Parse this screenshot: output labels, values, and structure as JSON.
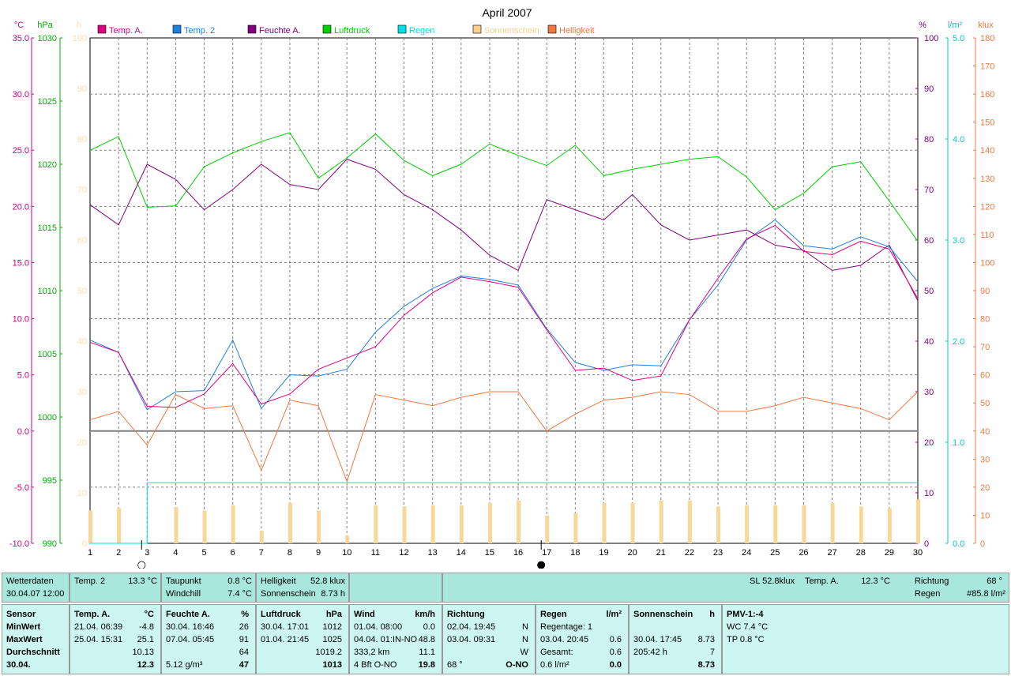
{
  "chart_data": {
    "type": "line",
    "title": "April 2007",
    "x": [
      1,
      2,
      3,
      4,
      5,
      6,
      7,
      8,
      9,
      10,
      11,
      12,
      13,
      14,
      15,
      16,
      17,
      18,
      19,
      20,
      21,
      22,
      23,
      24,
      25,
      26,
      27,
      28,
      29,
      30
    ],
    "axes": {
      "temp": {
        "unit": "°C",
        "range": [
          -10,
          35
        ],
        "ticks": [
          "35.0",
          "30.0",
          "25.0",
          "20.0",
          "15.0",
          "10.0",
          "5.0",
          "0.0",
          "-5.0",
          "-10.0"
        ],
        "color": "#d0007f"
      },
      "pressure": {
        "unit": "hPa",
        "range": [
          990,
          1030
        ],
        "ticks": [
          "1030",
          "1025",
          "1020",
          "1015",
          "1010",
          "1005",
          "1000",
          "995",
          "990"
        ],
        "color": "#00b000"
      },
      "hours": {
        "unit": "h",
        "range": [
          0,
          100
        ],
        "ticks": [
          "100",
          "90",
          "80",
          "70",
          "60",
          "50",
          "40",
          "30",
          "20",
          "10",
          "0"
        ],
        "color": "#f8e0a8"
      },
      "humidity": {
        "unit": "%",
        "range": [
          0,
          100
        ],
        "ticks": [
          "100",
          "90",
          "80",
          "70",
          "60",
          "50",
          "40",
          "30",
          "20",
          "10",
          "0"
        ],
        "color": "#800080"
      },
      "rain": {
        "unit": "l/m²",
        "range": [
          0,
          5
        ],
        "ticks": [
          "5.0",
          "4.0",
          "3.0",
          "2.0",
          "1.0",
          "0.0"
        ],
        "color": "#00c8c8"
      },
      "light": {
        "unit": "klux",
        "range": [
          0,
          180
        ],
        "ticks": [
          "180",
          "170",
          "160",
          "150",
          "140",
          "130",
          "120",
          "110",
          "100",
          "90",
          "80",
          "70",
          "60",
          "50",
          "40",
          "30",
          "20",
          "10",
          "0"
        ],
        "color": "#f07840"
      }
    },
    "legend": [
      {
        "name": "Temp. A.",
        "color": "#e0007f"
      },
      {
        "name": "Temp. 2",
        "color": "#2080e0"
      },
      {
        "name": "Feuchte A.",
        "color": "#800080"
      },
      {
        "name": "Luftdruck",
        "color": "#00d000"
      },
      {
        "name": "Regen",
        "color": "#00e0e0"
      },
      {
        "name": "Sonnenschein",
        "color": "#f8d090"
      },
      {
        "name": "Helligkeit",
        "color": "#f07840"
      }
    ],
    "series": [
      {
        "name": "Temp. A.",
        "axis": "temp",
        "values": [
          7.9,
          7.0,
          2.2,
          2.1,
          3.3,
          6.0,
          2.4,
          3.3,
          5.5,
          6.5,
          7.5,
          10.3,
          12.3,
          13.7,
          13.3,
          12.8,
          9.0,
          5.4,
          5.6,
          4.5,
          4.9,
          9.9,
          13.6,
          17.1,
          18.3,
          16.0,
          15.7,
          16.9,
          16.2,
          11.8
        ]
      },
      {
        "name": "Temp. 2",
        "axis": "temp",
        "values": [
          8.1,
          7.0,
          1.9,
          3.5,
          3.6,
          8.1,
          2.0,
          5.0,
          4.9,
          5.5,
          8.8,
          11.1,
          12.7,
          13.8,
          13.5,
          13.0,
          9.1,
          6.1,
          5.4,
          5.9,
          5.8,
          9.9,
          13.0,
          17.0,
          18.8,
          16.5,
          16.2,
          17.3,
          16.4,
          13.3
        ]
      },
      {
        "name": "Feuchte A.",
        "axis": "humidity",
        "values": [
          67,
          63,
          75,
          72,
          66,
          70,
          75,
          71,
          70,
          76,
          74,
          69,
          66,
          62,
          57,
          54,
          68,
          66,
          64,
          69,
          63,
          60,
          61,
          62,
          59,
          58,
          54,
          55,
          59,
          48
        ]
      },
      {
        "name": "Luftdruck",
        "axis": "pressure",
        "values": [
          1021.1,
          1022.2,
          1016.6,
          1016.7,
          1019.8,
          1020.9,
          1021.8,
          1022.5,
          1018.9,
          1020.5,
          1022.4,
          1020.3,
          1019.1,
          1020.0,
          1021.6,
          1020.7,
          1019.9,
          1021.5,
          1019.1,
          1019.6,
          1020.0,
          1020.4,
          1020.6,
          1019.0,
          1016.4,
          1017.7,
          1019.8,
          1020.2,
          1017.1,
          1013.9
        ]
      },
      {
        "name": "Regen",
        "axis": "rain",
        "values": [
          0.0,
          0.0,
          0.6,
          0.6,
          0.6,
          0.6,
          0.6,
          0.6,
          0.6,
          0.6,
          0.6,
          0.6,
          0.6,
          0.6,
          0.6,
          0.6,
          0.6,
          0.6,
          0.6,
          0.6,
          0.6,
          0.6,
          0.6,
          0.6,
          0.6,
          0.6,
          0.6,
          0.6,
          0.6,
          0.6
        ]
      },
      {
        "name": "Sonnenschein",
        "axis": "hours",
        "values": [
          6.5,
          7.0,
          0,
          7.2,
          6.5,
          7.5,
          2.5,
          8.0,
          6.5,
          1.5,
          7.5,
          7.3,
          7.5,
          7.5,
          8.0,
          8.5,
          5.5,
          6.0,
          8.0,
          8.0,
          8.5,
          8.5,
          7.3,
          7.5,
          7.5,
          7.5,
          8.0,
          7.3,
          7.0,
          8.7
        ]
      },
      {
        "name": "Helligkeit",
        "axis": "light",
        "values": [
          44,
          47,
          35,
          53,
          48,
          49,
          26,
          51,
          49,
          22,
          53,
          51,
          49,
          52,
          54,
          54,
          40,
          46,
          51,
          52,
          54,
          53,
          47,
          47,
          49,
          52,
          50,
          48,
          44,
          54
        ]
      }
    ],
    "moon_markers": [
      {
        "day": 3,
        "symbol": "○"
      },
      {
        "day": 17,
        "symbol": "●"
      }
    ]
  },
  "panel": {
    "row1": {
      "wetterdaten": {
        "label": "Wetterdaten",
        "datetime": "30.04.07 12:00"
      },
      "temp2": {
        "label": "Temp. 2",
        "value": "13.3 °C"
      },
      "taupunkt": {
        "label": "Taupunkt",
        "value": "0.8 °C",
        "label2": "Windchill",
        "value2": "7.4 °C"
      },
      "helligkeit": {
        "label": "Helligkeit",
        "value": "52.8 klux",
        "label2": "Sonnenschein",
        "value2": "8.73 h"
      },
      "sl": {
        "label": "SL 52.8klux",
        "label2": "Temp. A.",
        "value2": "12.3 °C"
      },
      "richtung": {
        "label": "Richtung",
        "value": "68 °",
        "label2": "Regen",
        "value2": "#85.8 l/m²"
      }
    },
    "row2": {
      "sensor": {
        "title": "Sensor",
        "rows": [
          "MinWert",
          "MaxWert",
          "Durchschnitt",
          "30.04."
        ]
      },
      "tempA": {
        "title": "Temp. A.",
        "unit": "°C",
        "rows": [
          [
            "21.04.  06:39",
            "-4.8"
          ],
          [
            "25.04.  15:31",
            "25.1"
          ],
          [
            "",
            "10.13"
          ],
          [
            "",
            "12.3"
          ]
        ]
      },
      "feuchte": {
        "title": "Feuchte A.",
        "unit": "%",
        "rows": [
          [
            "30.04.  16:46",
            "26"
          ],
          [
            "07.04.  05:45",
            "91"
          ],
          [
            "",
            "64"
          ],
          [
            "5.12 g/m³",
            "47"
          ]
        ]
      },
      "luftdruck": {
        "title": "Luftdruck",
        "unit": "hPa",
        "rows": [
          [
            "30.04.  17:01",
            "1012"
          ],
          [
            "01.04.  21:45",
            "1025"
          ],
          [
            "",
            "1019.2"
          ],
          [
            "",
            "1013"
          ]
        ]
      },
      "wind": {
        "title": "Wind",
        "unit": "km/h",
        "rows": [
          [
            "01.04.  08:00",
            "0.0"
          ],
          [
            "04.04.  01:IN-NO",
            "48.8"
          ],
          [
            "333,2 km",
            "11.1"
          ],
          [
            "4 Bft O-NO",
            "19.8"
          ]
        ]
      },
      "richtung": {
        "title": "Richtung",
        "unit": "",
        "rows": [
          [
            "02.04.  19:45",
            "N"
          ],
          [
            "03.04.  09:31",
            "N"
          ],
          [
            "",
            "W"
          ],
          [
            "68 °",
            "O-NO"
          ]
        ]
      },
      "regen": {
        "title": "Regen",
        "unit": "l/m²",
        "rows": [
          [
            "Regentage: 1",
            ""
          ],
          [
            "03.04.  20:45",
            "0.6"
          ],
          [
            "Gesamt:",
            "0.6"
          ],
          [
            "0.6 l/m²",
            "0.0"
          ]
        ]
      },
      "sonnenschein": {
        "title": "Sonnenschein",
        "unit": "h",
        "rows": [
          [
            "",
            ""
          ],
          [
            "30.04.  17:45",
            "8.73"
          ],
          [
            "205:42 h",
            "7"
          ],
          [
            "",
            "8.73"
          ]
        ]
      },
      "pmv": {
        "title": "PMV-1:-4",
        "rows": [
          "WC 7.4 °C",
          "TP 0.8 °C"
        ]
      }
    }
  }
}
